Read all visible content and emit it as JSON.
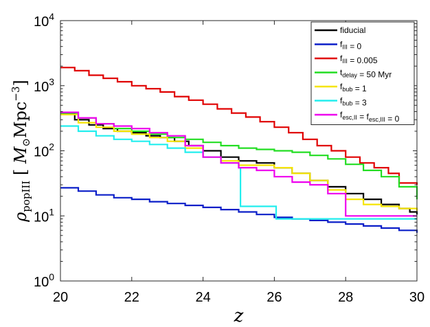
{
  "chart_data": {
    "type": "line",
    "title": "",
    "xlabel": "z",
    "ylabel": "ρ_popIII [M☉ Mpc⁻³]",
    "ylabel_parts": {
      "rho": "ρ",
      "sub": "popIII",
      "unit_open": "[",
      "msun": "M",
      "sun_sub": "⊙",
      "mpc": "Mpc",
      "exp": "−3",
      "unit_close": "]"
    },
    "xlim": [
      20,
      30
    ],
    "ylim": [
      1,
      10000
    ],
    "yscale": "log",
    "x_ticks": [
      "20",
      "22",
      "24",
      "26",
      "28",
      "30"
    ],
    "y_ticks": [
      {
        "value": 1,
        "base": "10",
        "exp": "0"
      },
      {
        "value": 10,
        "base": "10",
        "exp": "1"
      },
      {
        "value": 100,
        "base": "10",
        "exp": "2"
      },
      {
        "value": 1000,
        "base": "10",
        "exp": "3"
      },
      {
        "value": 10000,
        "base": "10",
        "exp": "4"
      }
    ],
    "grid": false,
    "legend_position": "top-right",
    "series": [
      {
        "name": "fiducial",
        "legend": [
          {
            "t": "fiducial"
          }
        ],
        "color": "#000000",
        "points": [
          [
            20,
            370
          ],
          [
            20.4,
            300
          ],
          [
            20.8,
            250
          ],
          [
            21.2,
            220
          ],
          [
            21.6,
            200
          ],
          [
            22,
            190
          ],
          [
            22.4,
            170
          ],
          [
            22.8,
            160
          ],
          [
            23.2,
            140
          ],
          [
            23.6,
            120
          ],
          [
            24,
            100
          ],
          [
            24.5,
            80
          ],
          [
            25,
            70
          ],
          [
            25.5,
            65
          ],
          [
            26,
            55
          ],
          [
            26.5,
            45
          ],
          [
            27,
            35
          ],
          [
            27.5,
            28
          ],
          [
            28,
            22
          ],
          [
            28.5,
            18
          ],
          [
            29,
            15
          ],
          [
            29.5,
            13
          ],
          [
            29.8,
            11.5
          ],
          [
            30,
            10.5
          ]
        ]
      },
      {
        "name": "f_III = 0",
        "legend": [
          {
            "t": "f"
          },
          {
            "t": "III",
            "sub": true
          },
          {
            "t": " = 0"
          }
        ],
        "color": "#0a1ec8",
        "points": [
          [
            20,
            27
          ],
          [
            20.5,
            24
          ],
          [
            21,
            21
          ],
          [
            21.5,
            19
          ],
          [
            22,
            18
          ],
          [
            22.5,
            16.5
          ],
          [
            23,
            15.5
          ],
          [
            23.5,
            14.5
          ],
          [
            24,
            13.5
          ],
          [
            24.5,
            12.5
          ],
          [
            25,
            11.5
          ],
          [
            25.5,
            10.5
          ],
          [
            26,
            9.5
          ],
          [
            26.5,
            9
          ],
          [
            27,
            8.5
          ],
          [
            27.5,
            8
          ],
          [
            28,
            7.5
          ],
          [
            28.5,
            7
          ],
          [
            29,
            6.5
          ],
          [
            29.5,
            6
          ],
          [
            30,
            5.5
          ]
        ]
      },
      {
        "name": "f_III = 0.005",
        "legend": [
          {
            "t": "f"
          },
          {
            "t": "III",
            "sub": true
          },
          {
            "t": " = 0.005"
          }
        ],
        "color": "#e00000",
        "points": [
          [
            20,
            1900
          ],
          [
            20.4,
            1700
          ],
          [
            20.8,
            1450
          ],
          [
            21.2,
            1300
          ],
          [
            21.6,
            1150
          ],
          [
            22,
            1000
          ],
          [
            22.4,
            900
          ],
          [
            22.8,
            800
          ],
          [
            23.2,
            680
          ],
          [
            23.6,
            600
          ],
          [
            24,
            520
          ],
          [
            24.4,
            440
          ],
          [
            24.8,
            380
          ],
          [
            25.2,
            330
          ],
          [
            25.6,
            280
          ],
          [
            26,
            230
          ],
          [
            26.4,
            190
          ],
          [
            26.8,
            150
          ],
          [
            27.2,
            120
          ],
          [
            27.6,
            100
          ],
          [
            28,
            80
          ],
          [
            28.4,
            65
          ],
          [
            28.8,
            55
          ],
          [
            29.2,
            45
          ],
          [
            29.5,
            32
          ],
          [
            30,
            30
          ]
        ]
      },
      {
        "name": "t_delay = 50 Myr",
        "legend": [
          {
            "t": "t"
          },
          {
            "t": "delay",
            "sub": true
          },
          {
            "t": " = 50 Myr"
          }
        ],
        "color": "#22dd22",
        "points": [
          [
            20,
            380
          ],
          [
            20.5,
            320
          ],
          [
            21,
            260
          ],
          [
            21.5,
            220
          ],
          [
            22,
            200
          ],
          [
            22.5,
            180
          ],
          [
            23,
            160
          ],
          [
            23.5,
            150
          ],
          [
            24,
            135
          ],
          [
            24.5,
            120
          ],
          [
            25,
            110
          ],
          [
            25.5,
            105
          ],
          [
            26,
            100
          ],
          [
            26.5,
            95
          ],
          [
            27,
            85
          ],
          [
            27.5,
            75
          ],
          [
            28,
            62
          ],
          [
            28.5,
            50
          ],
          [
            29,
            40
          ],
          [
            29.5,
            28
          ],
          [
            30,
            18
          ]
        ]
      },
      {
        "name": "f_bub = 1",
        "legend": [
          {
            "t": "f"
          },
          {
            "t": "bub",
            "sub": true
          },
          {
            "t": " = 1"
          }
        ],
        "color": "#f5e400",
        "points": [
          [
            20,
            360
          ],
          [
            20.5,
            270
          ],
          [
            21,
            230
          ],
          [
            21.5,
            200
          ],
          [
            22,
            180
          ],
          [
            22.5,
            160
          ],
          [
            23,
            140
          ],
          [
            23.5,
            110
          ],
          [
            24,
            80
          ],
          [
            24.5,
            70
          ],
          [
            25,
            60
          ],
          [
            25.5,
            60
          ],
          [
            26,
            55
          ],
          [
            26.5,
            45
          ],
          [
            27,
            35
          ],
          [
            27.5,
            25
          ],
          [
            28,
            18
          ],
          [
            28.5,
            15
          ],
          [
            29,
            14
          ],
          [
            29.5,
            13
          ],
          [
            30,
            12
          ]
        ]
      },
      {
        "name": "f_bub = 3",
        "legend": [
          {
            "t": "f"
          },
          {
            "t": "bub",
            "sub": true
          },
          {
            "t": " = 3"
          }
        ],
        "color": "#22eeee",
        "points": [
          [
            20,
            240
          ],
          [
            20.5,
            200
          ],
          [
            21,
            170
          ],
          [
            21.5,
            150
          ],
          [
            22,
            140
          ],
          [
            22.5,
            125
          ],
          [
            23,
            110
          ],
          [
            23.5,
            95
          ],
          [
            24,
            80
          ],
          [
            24.5,
            65
          ],
          [
            25,
            55
          ],
          [
            25.05,
            14
          ],
          [
            26,
            14
          ],
          [
            26.05,
            9
          ],
          [
            27,
            9
          ],
          [
            28,
            9
          ],
          [
            29,
            9
          ],
          [
            30,
            9
          ]
        ]
      },
      {
        "name": "f_esc,II = f_esc,III = 0",
        "legend": [
          {
            "t": "f"
          },
          {
            "t": "esc,II",
            "sub": true
          },
          {
            "t": " = f"
          },
          {
            "t": "esc,III",
            "sub": true
          },
          {
            "t": " = 0"
          }
        ],
        "color": "#ee00ee",
        "points": [
          [
            20,
            390
          ],
          [
            20.5,
            320
          ],
          [
            21,
            260
          ],
          [
            21.5,
            240
          ],
          [
            22,
            220
          ],
          [
            22.5,
            190
          ],
          [
            23,
            170
          ],
          [
            23.5,
            120
          ],
          [
            24,
            80
          ],
          [
            24.5,
            65
          ],
          [
            25,
            55
          ],
          [
            25.5,
            50
          ],
          [
            26,
            40
          ],
          [
            26.5,
            33
          ],
          [
            27,
            30
          ],
          [
            27.5,
            22
          ],
          [
            28,
            10
          ],
          [
            29,
            10
          ],
          [
            30,
            10
          ]
        ]
      }
    ]
  }
}
